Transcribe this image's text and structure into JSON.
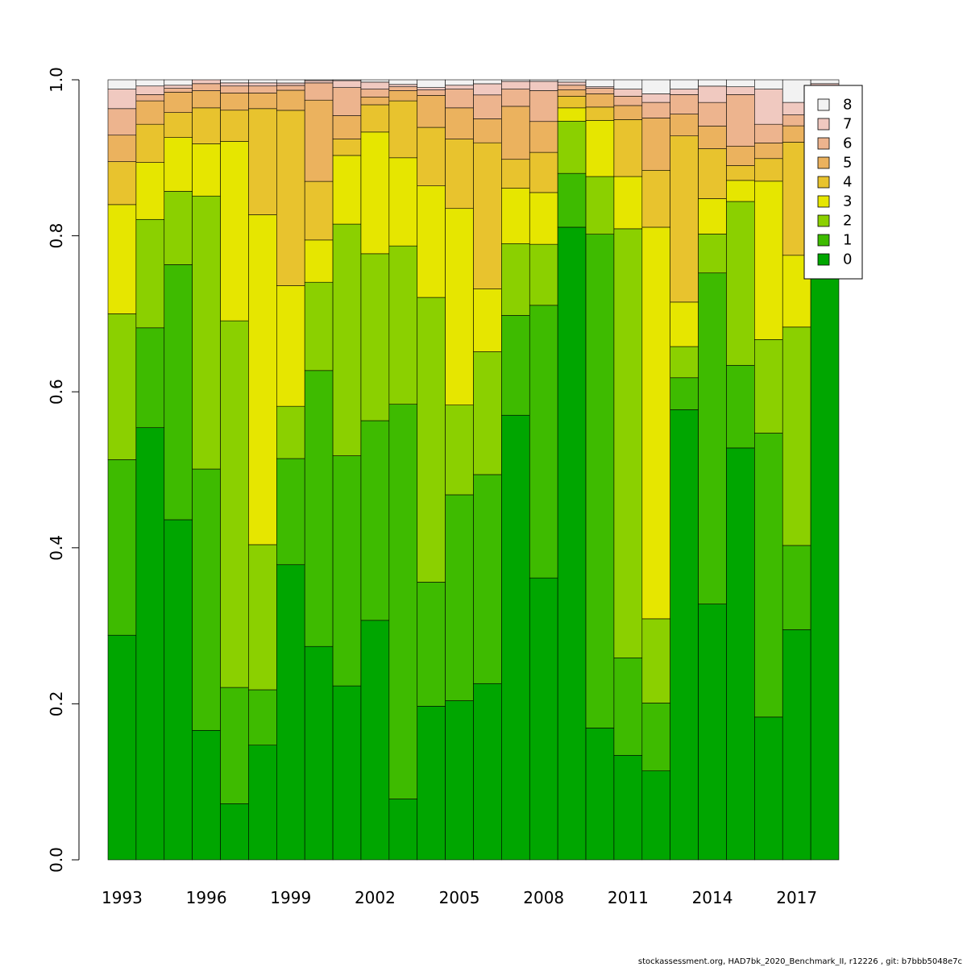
{
  "footer": "stockassessment.org, HAD7bk_2020_Benchmark_II, r12226 , git: b7bbb5048e7c",
  "chart_data": {
    "type": "bar",
    "stacked": true,
    "title": "",
    "xlabel": "",
    "ylabel": "",
    "ylim": [
      0,
      1
    ],
    "yticks": [
      "0.0",
      "0.2",
      "0.4",
      "0.6",
      "0.8",
      "1.0"
    ],
    "categories": [
      "1993",
      "1994",
      "1995",
      "1996",
      "1997",
      "1998",
      "1999",
      "2000",
      "2001",
      "2002",
      "2003",
      "2004",
      "2005",
      "2006",
      "2007",
      "2008",
      "2009",
      "2010",
      "2011",
      "2012",
      "2013",
      "2014",
      "2015",
      "2016",
      "2017",
      "2018"
    ],
    "xtick_labels": [
      "1993",
      "1996",
      "1999",
      "2002",
      "2005",
      "2008",
      "2011",
      "2014",
      "2017"
    ],
    "legend_position": "top-right",
    "legend_order": [
      "8",
      "7",
      "6",
      "5",
      "4",
      "3",
      "2",
      "1",
      "0"
    ],
    "series": [
      {
        "name": "0",
        "color": "#00A600",
        "values": [
          0.288,
          0.554,
          0.436,
          0.166,
          0.072,
          0.147,
          0.367,
          0.273,
          0.223,
          0.307,
          0.078,
          0.197,
          0.204,
          0.221,
          0.57,
          0.365,
          0.811,
          0.169,
          0.134,
          0.114,
          0.577,
          0.282,
          0.528,
          0.183,
          0.295,
          0.9
        ]
      },
      {
        "name": "1",
        "color": "#3EBB00",
        "values": [
          0.225,
          0.128,
          0.327,
          0.335,
          0.149,
          0.071,
          0.132,
          0.353,
          0.295,
          0.256,
          0.506,
          0.159,
          0.264,
          0.262,
          0.128,
          0.353,
          0.069,
          0.633,
          0.125,
          0.087,
          0.041,
          0.365,
          0.106,
          0.364,
          0.108,
          0.03
        ]
      },
      {
        "name": "2",
        "color": "#8BD000",
        "values": [
          0.187,
          0.139,
          0.094,
          0.35,
          0.47,
          0.186,
          0.065,
          0.113,
          0.297,
          0.214,
          0.203,
          0.365,
          0.115,
          0.154,
          0.092,
          0.079,
          0.067,
          0.074,
          0.55,
          0.108,
          0.04,
          0.043,
          0.21,
          0.12,
          0.28,
          0.02
        ]
      },
      {
        "name": "3",
        "color": "#E6E600",
        "values": [
          0.14,
          0.073,
          0.069,
          0.067,
          0.23,
          0.423,
          0.15,
          0.054,
          0.088,
          0.156,
          0.113,
          0.143,
          0.252,
          0.079,
          0.071,
          0.067,
          0.017,
          0.072,
          0.067,
          0.502,
          0.057,
          0.039,
          0.027,
          0.203,
          0.092,
          0.01
        ]
      },
      {
        "name": "4",
        "color": "#E8C32E",
        "values": [
          0.055,
          0.049,
          0.032,
          0.046,
          0.04,
          0.136,
          0.218,
          0.075,
          0.021,
          0.035,
          0.073,
          0.075,
          0.089,
          0.183,
          0.037,
          0.052,
          0.015,
          0.017,
          0.073,
          0.073,
          0.213,
          0.055,
          0.019,
          0.029,
          0.145,
          0.01
        ]
      },
      {
        "name": "5",
        "color": "#EBB25E",
        "values": [
          0.034,
          0.03,
          0.026,
          0.022,
          0.022,
          0.02,
          0.025,
          0.104,
          0.03,
          0.01,
          0.013,
          0.041,
          0.04,
          0.03,
          0.068,
          0.04,
          0.008,
          0.017,
          0.018,
          0.067,
          0.028,
          0.025,
          0.025,
          0.02,
          0.021,
          0.01
        ]
      },
      {
        "name": "6",
        "color": "#EDB48E",
        "values": [
          0.034,
          0.008,
          0.005,
          0.009,
          0.009,
          0.009,
          0.006,
          0.022,
          0.036,
          0.01,
          0.005,
          0.007,
          0.024,
          0.03,
          0.022,
          0.04,
          0.006,
          0.007,
          0.012,
          0.02,
          0.025,
          0.026,
          0.066,
          0.024,
          0.014,
          0.01
        ]
      },
      {
        "name": "7",
        "color": "#F0C9C0",
        "values": [
          0.025,
          0.011,
          0.004,
          0.005,
          0.004,
          0.004,
          0.003,
          0.003,
          0.009,
          0.009,
          0.003,
          0.003,
          0.005,
          0.014,
          0.01,
          0.012,
          0.004,
          0.002,
          0.009,
          0.011,
          0.007,
          0.018,
          0.01,
          0.045,
          0.016,
          0.005
        ]
      },
      {
        "name": "8",
        "color": "#F2F2F2",
        "values": [
          0.012,
          0.008,
          0.007,
          0.0,
          0.004,
          0.004,
          0.004,
          0.001,
          0.001,
          0.003,
          0.006,
          0.01,
          0.007,
          0.005,
          0.002,
          0.002,
          0.003,
          0.009,
          0.012,
          0.018,
          0.012,
          0.007,
          0.009,
          0.012,
          0.029,
          0.005
        ]
      }
    ]
  }
}
